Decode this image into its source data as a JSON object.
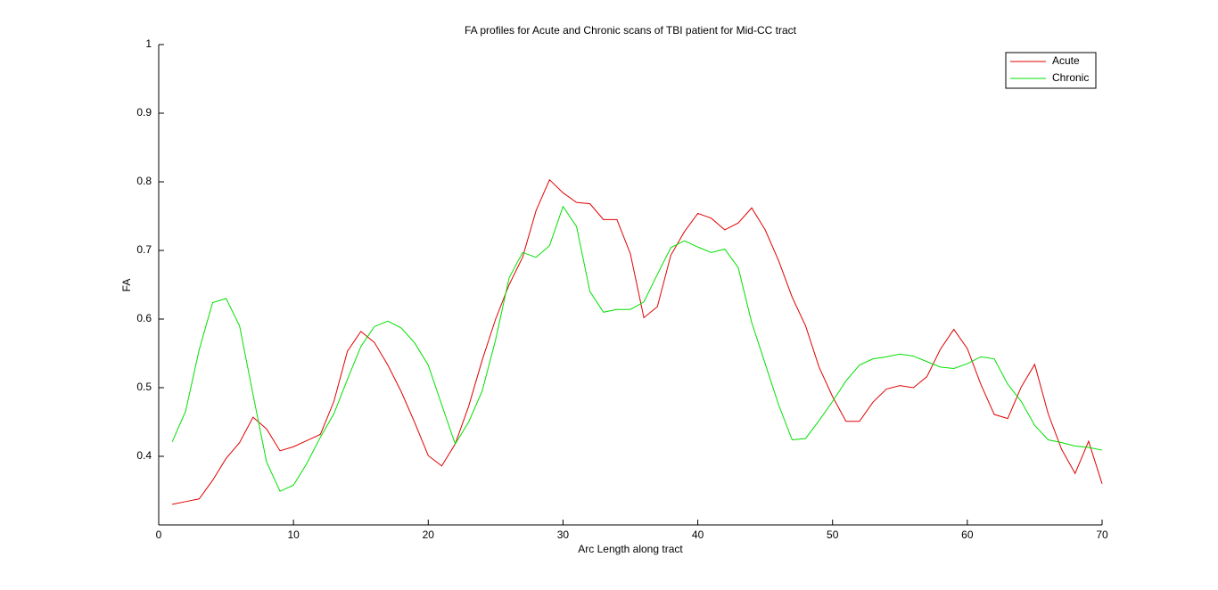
{
  "chart_data": {
    "type": "line",
    "title": "FA profiles for Acute and Chronic scans of TBI patient for Mid-CC tract",
    "x_label": "Arc Length along tract",
    "y_label": "FA",
    "x": [
      1,
      2,
      3,
      4,
      5,
      6,
      7,
      8,
      9,
      10,
      11,
      12,
      13,
      14,
      15,
      16,
      17,
      18,
      19,
      20,
      21,
      22,
      23,
      24,
      25,
      26,
      27,
      28,
      29,
      30,
      31,
      32,
      33,
      34,
      35,
      36,
      37,
      38,
      39,
      40,
      41,
      42,
      43,
      44,
      45,
      46,
      47,
      48,
      49,
      50,
      51,
      52,
      53,
      54,
      55,
      56,
      57,
      58,
      59,
      60,
      61,
      62,
      63,
      64,
      65,
      66,
      67,
      68,
      69,
      70
    ],
    "series": [
      {
        "name": "Acute",
        "color": "#e00000",
        "values": [
          0.33,
          0.334,
          0.338,
          0.365,
          0.397,
          0.42,
          0.457,
          0.44,
          0.408,
          0.414,
          0.423,
          0.432,
          0.48,
          0.553,
          0.582,
          0.566,
          0.533,
          0.494,
          0.449,
          0.401,
          0.386,
          0.418,
          0.473,
          0.54,
          0.6,
          0.65,
          0.69,
          0.758,
          0.803,
          0.784,
          0.77,
          0.768,
          0.745,
          0.745,
          0.695,
          0.602,
          0.618,
          0.693,
          0.727,
          0.754,
          0.747,
          0.73,
          0.74,
          0.762,
          0.73,
          0.685,
          0.632,
          0.59,
          0.53,
          0.487,
          0.451,
          0.451,
          0.479,
          0.498,
          0.503,
          0.5,
          0.516,
          0.556,
          0.585,
          0.557,
          0.505,
          0.461,
          0.455,
          0.501,
          0.534,
          0.462,
          0.41,
          0.375,
          0.422,
          0.36
        ]
      },
      {
        "name": "Chronic",
        "color": "#00e000",
        "values": [
          0.421,
          0.466,
          0.555,
          0.624,
          0.63,
          0.59,
          0.49,
          0.392,
          0.349,
          0.358,
          0.39,
          0.428,
          0.462,
          0.512,
          0.56,
          0.589,
          0.597,
          0.587,
          0.565,
          0.533,
          0.475,
          0.418,
          0.45,
          0.495,
          0.57,
          0.66,
          0.697,
          0.69,
          0.707,
          0.764,
          0.735,
          0.64,
          0.61,
          0.614,
          0.614,
          0.625,
          0.665,
          0.704,
          0.714,
          0.705,
          0.697,
          0.702,
          0.675,
          0.595,
          0.535,
          0.475,
          0.424,
          0.426,
          0.452,
          0.48,
          0.51,
          0.533,
          0.542,
          0.545,
          0.549,
          0.546,
          0.538,
          0.53,
          0.528,
          0.535,
          0.545,
          0.542,
          0.505,
          0.48,
          0.445,
          0.424,
          0.42,
          0.415,
          0.413,
          0.409
        ]
      }
    ],
    "xlim": [
      0,
      70
    ],
    "xticks": [
      0,
      10,
      20,
      30,
      40,
      50,
      60,
      70
    ],
    "ylim": [
      0.3,
      1
    ],
    "yticks": [
      0.4,
      0.5,
      0.6,
      0.7,
      0.8,
      0.9,
      1
    ],
    "grid": false,
    "legend_position": "top-right"
  }
}
